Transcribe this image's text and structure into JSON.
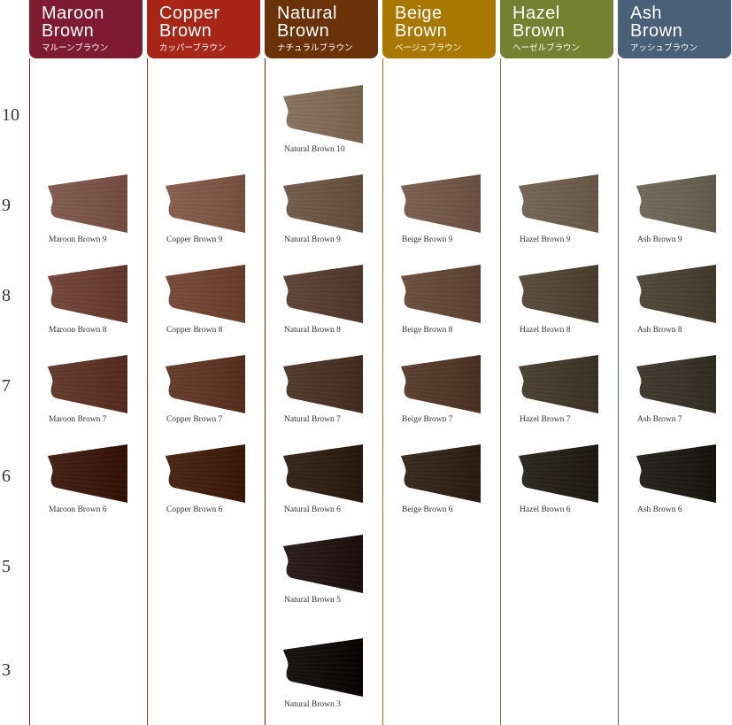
{
  "levels": [
    "10",
    "9",
    "8",
    "7",
    "6",
    "5",
    "3"
  ],
  "columns": [
    {
      "title_line1": "Maroon",
      "title_line2": "Brown",
      "kana": "マルーンブラウン",
      "header_color": "#7e1b33",
      "swatches": [
        {
          "level": "9",
          "label": "Maroon Brown 9",
          "color": "#7a5448"
        },
        {
          "level": "8",
          "label": "Maroon Brown 8",
          "color": "#6a4034"
        },
        {
          "level": "7",
          "label": "Maroon Brown 7",
          "color": "#5c3427"
        },
        {
          "level": "6",
          "label": "Maroon Brown 6",
          "color": "#3b1a10"
        }
      ]
    },
    {
      "title_line1": "Copper",
      "title_line2": "Brown",
      "kana": "カッパーブラウン",
      "header_color": "#a82618",
      "swatches": [
        {
          "level": "9",
          "label": "Copper Brown 9",
          "color": "#7e5747"
        },
        {
          "level": "8",
          "label": "Copper Brown 8",
          "color": "#6e4432"
        },
        {
          "level": "7",
          "label": "Copper Brown 7",
          "color": "#5e3626"
        },
        {
          "level": "6",
          "label": "Copper Brown 6",
          "color": "#41200f"
        }
      ]
    },
    {
      "title_line1": "Natural",
      "title_line2": "Brown",
      "kana": "ナチュラルブラウン",
      "header_color": "#6b3108",
      "swatches": [
        {
          "level": "10",
          "label": "Natural Brown 10",
          "color": "#7f6a56"
        },
        {
          "level": "9",
          "label": "Natural Brown 9",
          "color": "#6a5444"
        },
        {
          "level": "8",
          "label": "Natural Brown 8",
          "color": "#573e30"
        },
        {
          "level": "7",
          "label": "Natural Brown 7",
          "color": "#4a3427"
        },
        {
          "level": "6",
          "label": "Natural Brown 6",
          "color": "#302016"
        },
        {
          "level": "5",
          "label": "Natural Brown 5",
          "color": "#251716"
        },
        {
          "level": "3",
          "label": "Natural Brown 3",
          "color": "#120d0d"
        }
      ]
    },
    {
      "title_line1": "Beige",
      "title_line2": "Brown",
      "kana": "ベージュブラウン",
      "header_color": "#a97800",
      "swatches": [
        {
          "level": "9",
          "label": "Beige Brown 9",
          "color": "#73584a"
        },
        {
          "level": "8",
          "label": "Beige Brown 8",
          "color": "#644838"
        },
        {
          "level": "7",
          "label": "Beige Brown 7",
          "color": "#53392a"
        },
        {
          "level": "6",
          "label": "Beige Brown 6",
          "color": "#33241a"
        }
      ]
    },
    {
      "title_line1": "Hazel",
      "title_line2": "Brown",
      "kana": "ヘーゼルブラウン",
      "header_color": "#748130",
      "swatches": [
        {
          "level": "9",
          "label": "Hazel Brown 9",
          "color": "#6e5e4e"
        },
        {
          "level": "8",
          "label": "Hazel Brown 8",
          "color": "#514536"
        },
        {
          "level": "7",
          "label": "Hazel Brown 7",
          "color": "#443a2c"
        },
        {
          "level": "6",
          "label": "Hazel Brown 6",
          "color": "#25221a"
        }
      ]
    },
    {
      "title_line1": "Ash",
      "title_line2": "Brown",
      "kana": "アッシュブラウン",
      "header_color": "#4a6078",
      "swatches": [
        {
          "level": "9",
          "label": "Ash Brown 9",
          "color": "#6a6253"
        },
        {
          "level": "8",
          "label": "Ash Brown 8",
          "color": "#4a4234"
        },
        {
          "level": "7",
          "label": "Ash Brown 7",
          "color": "#39352a"
        },
        {
          "level": "6",
          "label": "Ash Brown 6",
          "color": "#1e1e16"
        }
      ]
    }
  ]
}
